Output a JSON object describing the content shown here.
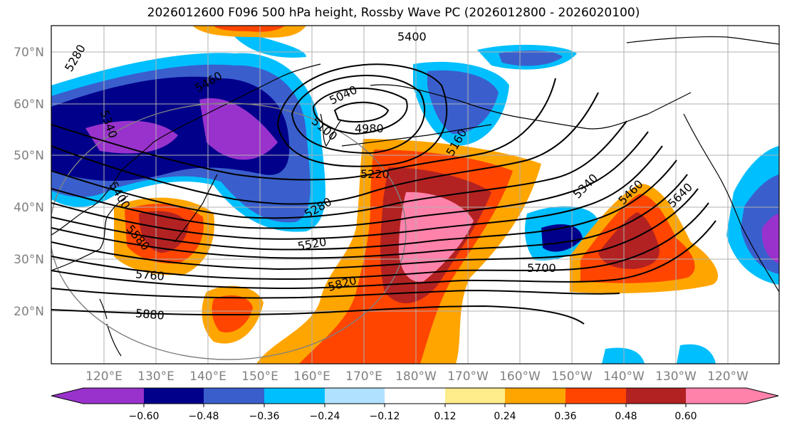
{
  "title": "2026012600 F096 500 hPa height, Rossby Wave PC (2026012800 - 2026020100)",
  "latitude_labels": [
    "70°N",
    "60°N",
    "50°N",
    "40°N",
    "30°N",
    "20°N"
  ],
  "longitude_labels": [
    "120°E",
    "130°E",
    "140°E",
    "150°E",
    "160°E",
    "170°E",
    "180°W",
    "170°W",
    "160°W",
    "150°W",
    "140°W",
    "130°W",
    "120°W"
  ],
  "height_contour_labels": [
    "5280",
    "5400",
    "5460",
    "5340",
    "5040",
    "4980",
    "5100",
    "5160",
    "5220",
    "5280",
    "5340",
    "5460",
    "5640",
    "5400",
    "5580",
    "5520",
    "5760",
    "5820",
    "5700",
    "5880"
  ],
  "colorbar": {
    "tick_labels": [
      "−0.60",
      "−0.48",
      "−0.36",
      "−0.24",
      "−0.12",
      "0.12",
      "0.24",
      "0.36",
      "0.48",
      "0.60"
    ],
    "colors": [
      "#9932cc",
      "#00008b",
      "#3a5fcd",
      "#00bfff",
      "#b0e2ff",
      "#ffffff",
      "#ffec8b",
      "#ffa500",
      "#ff4500",
      "#b22222",
      "#ff82ab"
    ]
  },
  "colors": {
    "purple": "#9932cc",
    "navy": "#00008b",
    "royal": "#3a5fcd",
    "sky": "#00bfff",
    "light": "#b0e2ff",
    "white": "#ffffff",
    "yellow": "#ffec8b",
    "orange": "#ffa500",
    "red_orange": "#ff4500",
    "firebrick": "#b22222",
    "pink": "#ff82ab"
  }
}
